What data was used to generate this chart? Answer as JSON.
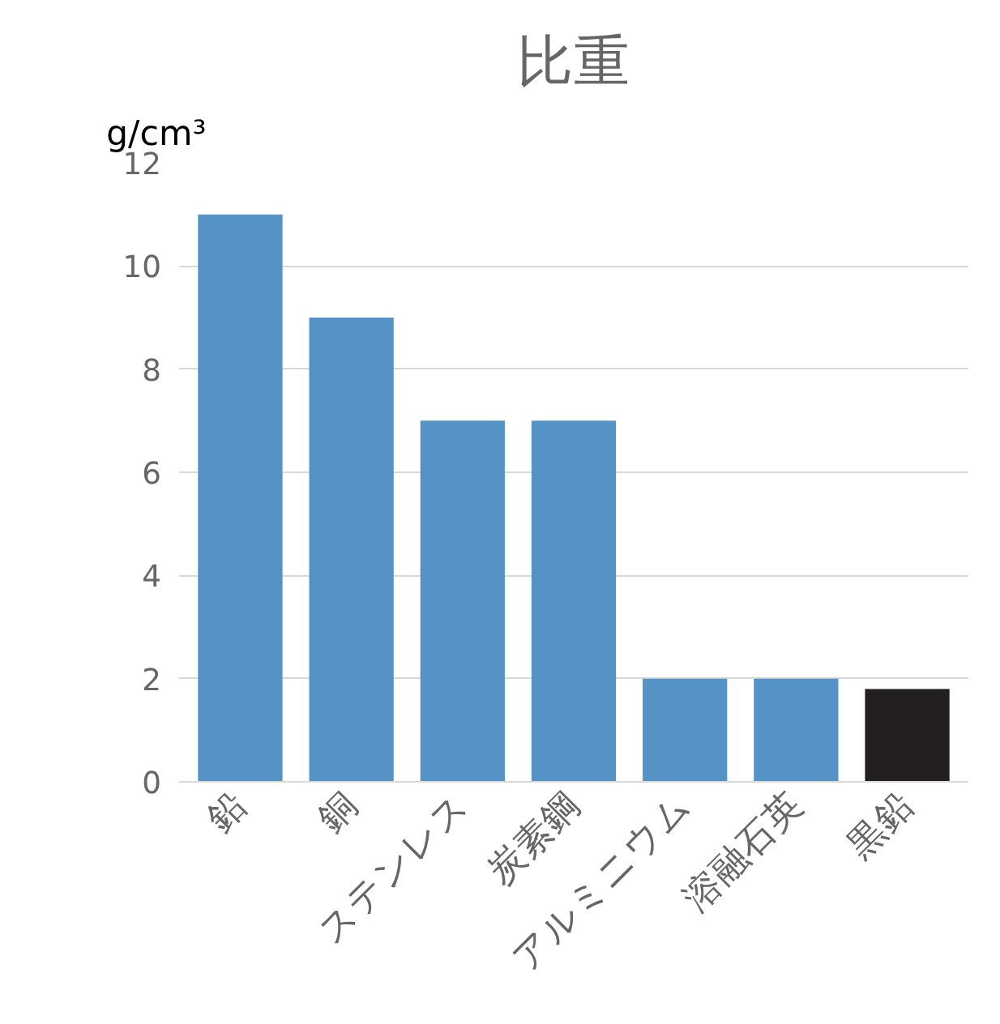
{
  "chart_data": {
    "type": "bar",
    "title": "比重",
    "ylabel": "g/cm³",
    "categories": [
      "鉛",
      "銅",
      "ステンレス",
      "炭素鋼",
      "アルミニウム",
      "溶融石英",
      "黒鉛"
    ],
    "values": [
      11,
      9,
      7,
      7,
      2,
      2,
      1.8
    ],
    "colors": [
      "#5592c6",
      "#5592c6",
      "#5592c6",
      "#5592c6",
      "#5592c6",
      "#5592c6",
      "#231f20"
    ],
    "ylim": [
      0,
      12
    ],
    "yticks": [
      0,
      2,
      4,
      6,
      8,
      10,
      12
    ],
    "grid": "y"
  }
}
